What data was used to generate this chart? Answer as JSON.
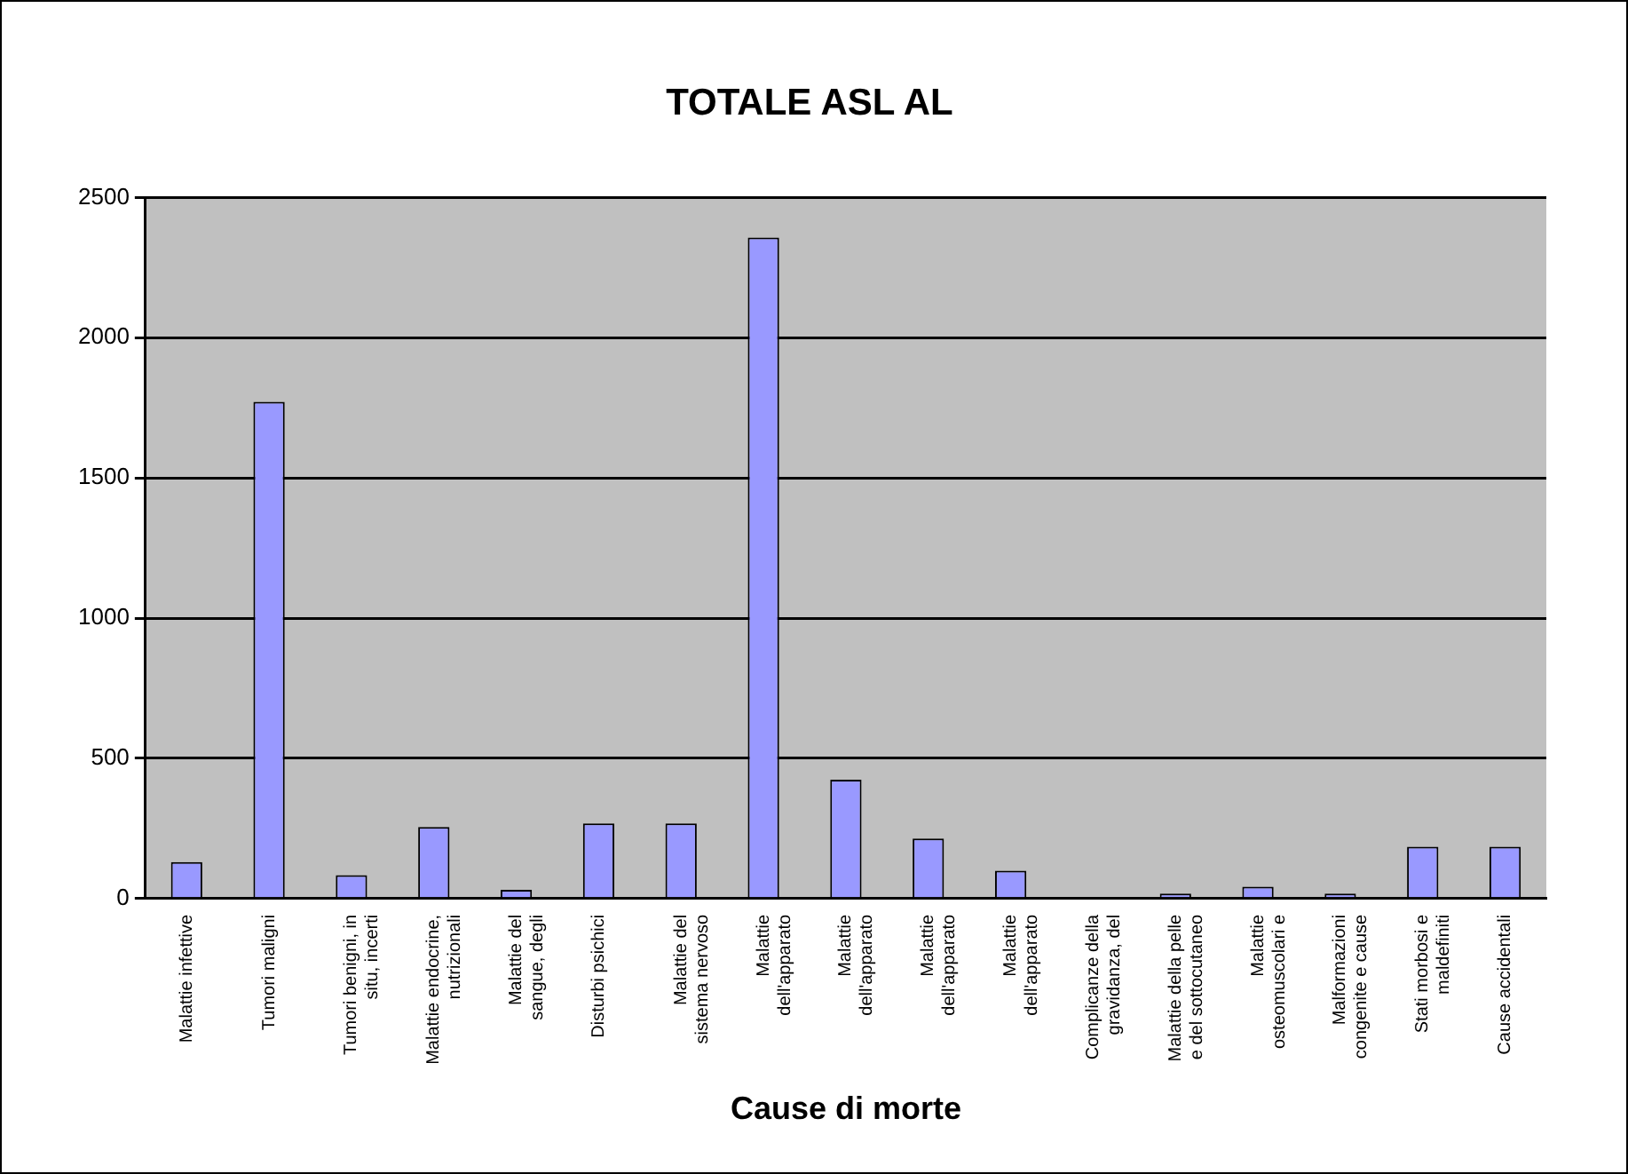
{
  "chart_data": {
    "type": "bar",
    "title": "TOTALE ASL AL",
    "xlabel": "Cause di morte",
    "categories": [
      "Malattie infettive",
      "Tumori maligni",
      "Tumori benigni, in\nsitu, incerti",
      "Malattie endocrine,\nnutrizionali",
      "Malattie del\nsangue, degli",
      "Disturbi psichici",
      "Malattie del\nsistema nervoso",
      "Malattie\ndell'apparato",
      "Malattie\ndell'apparato",
      "Malattie\ndell'apparato",
      "Malattie\ndell'apparato",
      "Complicanze della\ngravidanza, del",
      "Malattie della pelle\ne del sottocutaneo",
      "Malattie\nosteomuscolari e",
      "Malformazioni\ncongenite e cause",
      "Stati morbosi e\nmaldefiniti",
      "Cause accidentali"
    ],
    "values": [
      130,
      1771,
      83,
      255,
      31,
      268,
      268,
      2357,
      424,
      214,
      99,
      0,
      18,
      42,
      18,
      185,
      185
    ],
    "color": "#9999ff",
    "ylim": [
      0,
      2500
    ],
    "yticks": [
      0,
      500,
      1000,
      1500,
      2000,
      2500
    ],
    "grid": "y"
  }
}
